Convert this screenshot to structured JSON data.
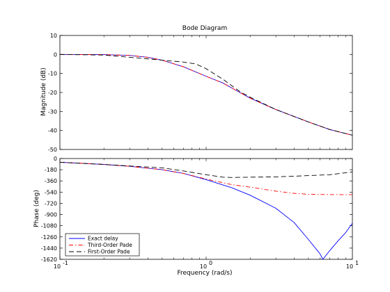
{
  "chart_data": {
    "type": "line",
    "title": "Bode Diagram",
    "xlabel": "Frequency  (rad/s)",
    "x_scale": "log",
    "xlim": [
      0.1,
      10
    ],
    "x_tick_labels": [
      {
        "value": 0.1,
        "mantissa": "10",
        "exp": "-1"
      },
      {
        "value": 1,
        "mantissa": "10",
        "exp": "0"
      },
      {
        "value": 10,
        "mantissa": "10",
        "exp": "1"
      }
    ],
    "legend": {
      "placement": "lower-left",
      "panel": "phase",
      "entries": [
        "Exact delay",
        "Third-Order Pade",
        "First-Order Pade"
      ]
    },
    "series_styles": [
      {
        "name": "Exact delay",
        "color": "#0000ff",
        "dash": "solid"
      },
      {
        "name": "Third-Order Pade",
        "color": "#ff0000",
        "dash": "dashdot"
      },
      {
        "name": "First-Order Pade",
        "color": "#000000",
        "dash": "dashed"
      }
    ],
    "panels": [
      {
        "id": "magnitude",
        "ylabel": "Magnitude (dB)",
        "ylim": [
          -50,
          10
        ],
        "yticks": [
          10,
          0,
          -10,
          -20,
          -30,
          -40,
          -50
        ],
        "series": [
          {
            "name": "Exact delay",
            "points": [
              [
                0.1,
                0
              ],
              [
                0.2,
                -0.1
              ],
              [
                0.3,
                -0.5
              ],
              [
                0.4,
                -1.5
              ],
              [
                0.5,
                -3
              ],
              [
                0.7,
                -6.5
              ],
              [
                1,
                -11.5
              ],
              [
                1.3,
                -15
              ],
              [
                1.7,
                -20
              ],
              [
                2,
                -23
              ],
              [
                3,
                -29
              ],
              [
                5,
                -35.5
              ],
              [
                7,
                -39.5
              ],
              [
                10,
                -42.5
              ]
            ]
          },
          {
            "name": "Third-Order Pade",
            "points": [
              [
                0.1,
                0
              ],
              [
                0.2,
                -0.1
              ],
              [
                0.3,
                -0.5
              ],
              [
                0.4,
                -1.5
              ],
              [
                0.5,
                -3
              ],
              [
                0.7,
                -6.5
              ],
              [
                1,
                -11.5
              ],
              [
                1.3,
                -15
              ],
              [
                1.7,
                -20
              ],
              [
                2,
                -23
              ],
              [
                3,
                -29
              ],
              [
                5,
                -35.5
              ],
              [
                7,
                -39.5
              ],
              [
                10,
                -42.5
              ]
            ]
          },
          {
            "name": "First-Order Pade",
            "points": [
              [
                0.1,
                0
              ],
              [
                0.2,
                -0.3
              ],
              [
                0.3,
                -1.5
              ],
              [
                0.4,
                -2.3
              ],
              [
                0.5,
                -3
              ],
              [
                0.7,
                -4
              ],
              [
                0.85,
                -5
              ],
              [
                1,
                -7.5
              ],
              [
                1.3,
                -13
              ],
              [
                1.7,
                -19.5
              ],
              [
                2,
                -22.5
              ],
              [
                3,
                -29
              ],
              [
                5,
                -35.5
              ],
              [
                7,
                -39.5
              ],
              [
                10,
                -42.5
              ]
            ]
          }
        ]
      },
      {
        "id": "phase",
        "ylabel": "Phase (deg)",
        "ylim": [
          -1620,
          0
        ],
        "yticks": [
          0,
          -180,
          -360,
          -540,
          -720,
          -900,
          -1080,
          -1260,
          -1440,
          -1620
        ],
        "series": [
          {
            "name": "Exact delay",
            "points": [
              [
                0.1,
                -60
              ],
              [
                0.2,
                -95
              ],
              [
                0.3,
                -125
              ],
              [
                0.5,
                -180
              ],
              [
                0.7,
                -240
              ],
              [
                1,
                -340
              ],
              [
                1.5,
                -470
              ],
              [
                2,
                -590
              ],
              [
                3,
                -800
              ],
              [
                4,
                -1030
              ],
              [
                5,
                -1300
              ],
              [
                6,
                -1530
              ],
              [
                6.28,
                -1620
              ],
              [
                7,
                -1480
              ],
              [
                8,
                -1320
              ],
              [
                9,
                -1190
              ],
              [
                10,
                -1040
              ]
            ]
          },
          {
            "name": "Third-Order Pade",
            "points": [
              [
                0.1,
                -60
              ],
              [
                0.2,
                -95
              ],
              [
                0.3,
                -125
              ],
              [
                0.5,
                -180
              ],
              [
                0.7,
                -240
              ],
              [
                1,
                -330
              ],
              [
                1.5,
                -420
              ],
              [
                2,
                -460
              ],
              [
                3,
                -525
              ],
              [
                4,
                -560
              ],
              [
                5,
                -575
              ],
              [
                7,
                -580
              ],
              [
                10,
                -580
              ]
            ]
          },
          {
            "name": "First-Order Pade",
            "points": [
              [
                0.1,
                -60
              ],
              [
                0.2,
                -95
              ],
              [
                0.3,
                -120
              ],
              [
                0.5,
                -150
              ],
              [
                0.7,
                -200
              ],
              [
                1,
                -260
              ],
              [
                1.3,
                -300
              ],
              [
                1.5,
                -305
              ],
              [
                2,
                -300
              ],
              [
                3,
                -295
              ],
              [
                5,
                -275
              ],
              [
                7,
                -260
              ],
              [
                10,
                -215
              ]
            ]
          }
        ]
      }
    ]
  }
}
